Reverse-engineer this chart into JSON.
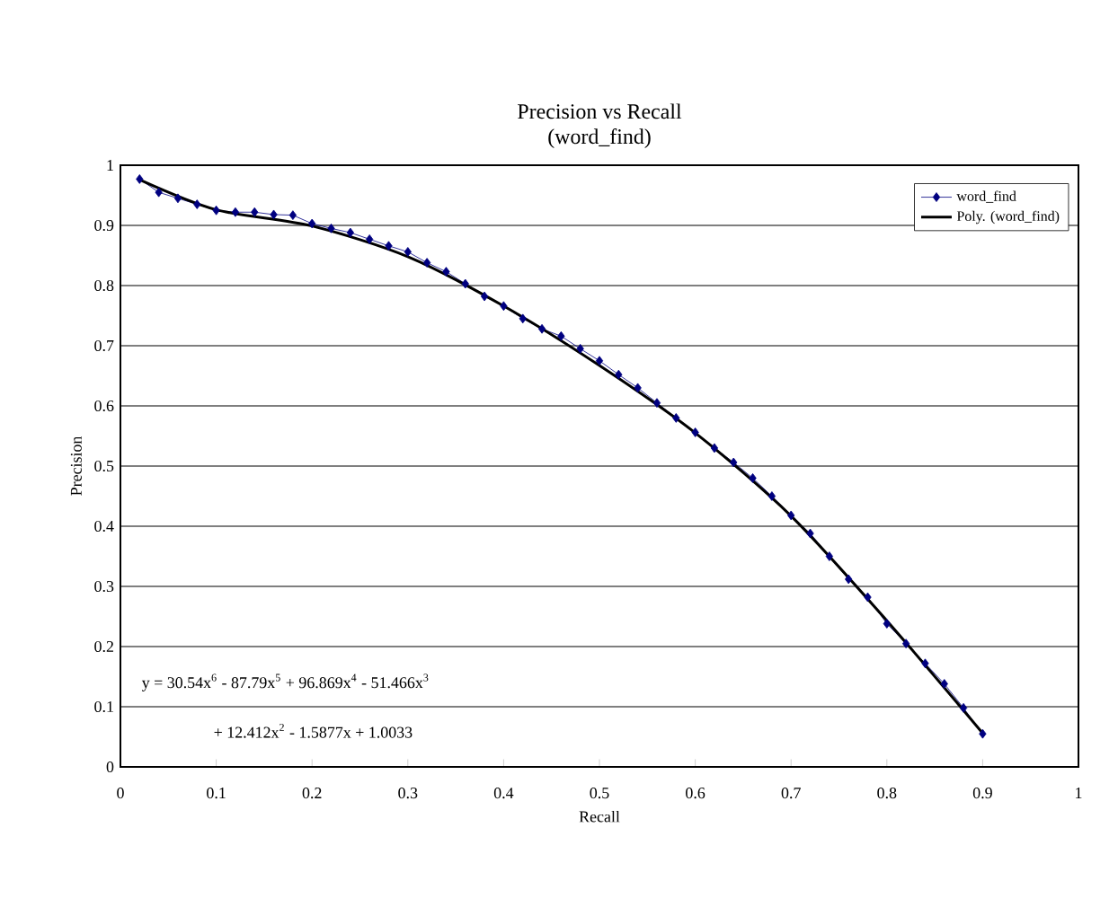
{
  "chart_data": {
    "type": "line",
    "title": "Precision vs Recall",
    "subtitle": "(word_find)",
    "xlabel": "Recall",
    "ylabel": "Precision",
    "xlim": [
      0,
      1
    ],
    "ylim": [
      0,
      1
    ],
    "xticks": [
      0,
      0.1,
      0.2,
      0.3,
      0.4,
      0.5,
      0.6,
      0.7,
      0.8,
      0.9,
      1
    ],
    "yticks": [
      0,
      0.1,
      0.2,
      0.3,
      0.4,
      0.5,
      0.6,
      0.7,
      0.8,
      0.9,
      1
    ],
    "grid": "y",
    "legend": "top right",
    "marker": "diamond",
    "series": [
      {
        "name": "word_find",
        "color": "#000080",
        "x": [
          0.02,
          0.04,
          0.06,
          0.08,
          0.1,
          0.12,
          0.14,
          0.16,
          0.18,
          0.2,
          0.22,
          0.24,
          0.26,
          0.28,
          0.3,
          0.32,
          0.34,
          0.36,
          0.38,
          0.4,
          0.42,
          0.44,
          0.46,
          0.48,
          0.5,
          0.52,
          0.54,
          0.56,
          0.58,
          0.6,
          0.62,
          0.64,
          0.66,
          0.68,
          0.7,
          0.72,
          0.74,
          0.76,
          0.78,
          0.8,
          0.82,
          0.84,
          0.86,
          0.88,
          0.9
        ],
        "values": [
          0.977,
          0.955,
          0.945,
          0.935,
          0.925,
          0.922,
          0.922,
          0.918,
          0.917,
          0.903,
          0.895,
          0.888,
          0.877,
          0.866,
          0.856,
          0.838,
          0.823,
          0.803,
          0.782,
          0.766,
          0.745,
          0.728,
          0.716,
          0.695,
          0.675,
          0.652,
          0.63,
          0.605,
          0.58,
          0.556,
          0.53,
          0.506,
          0.48,
          0.45,
          0.418,
          0.388,
          0.35,
          0.312,
          0.282,
          0.238,
          0.205,
          0.172,
          0.138,
          0.098,
          0.055
        ]
      },
      {
        "name": "Poly. (word_find)",
        "color": "#000000",
        "marker": "none",
        "x": [
          0.02,
          0.1,
          0.2,
          0.3,
          0.4,
          0.5,
          0.6,
          0.7,
          0.8,
          0.9
        ],
        "values": [
          0.976,
          0.926,
          0.899,
          0.848,
          0.766,
          0.667,
          0.555,
          0.417,
          0.243,
          0.056
        ]
      }
    ],
    "annotations": [
      "y = 30.54x$^{6}$ - 87.79x$^{5}$ + 96.869x$^{4}$ - 51.466x$^{3}$",
      "+ 12.412x$^{2}$ - 1.5877x + 1.0033"
    ]
  }
}
